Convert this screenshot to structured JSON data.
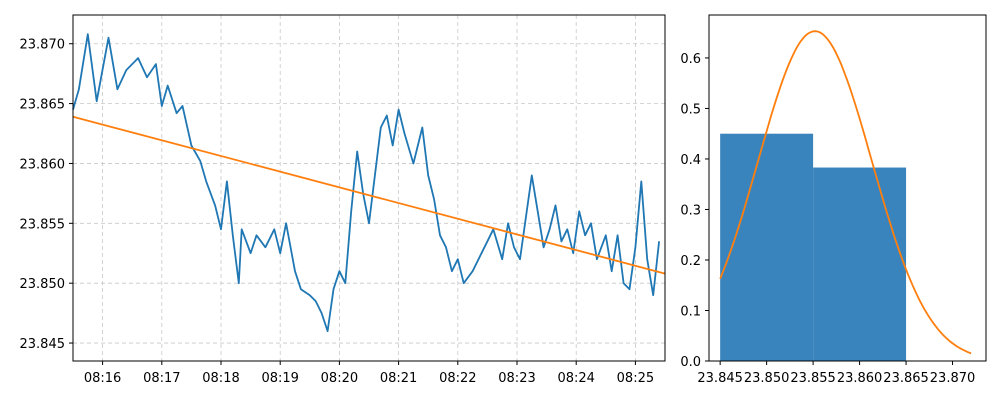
{
  "chart_data": [
    {
      "type": "line",
      "title": "",
      "xlabel": "",
      "ylabel": "",
      "grid": true,
      "x_tick_labels": [
        "08:16",
        "08:17",
        "08:18",
        "08:19",
        "08:20",
        "08:21",
        "08:22",
        "08:23",
        "08:24",
        "08:25"
      ],
      "y_tick_labels": [
        "23.845",
        "23.850",
        "23.855",
        "23.860",
        "23.865",
        "23.870"
      ],
      "y_ticks": [
        23.845,
        23.85,
        23.855,
        23.86,
        23.865,
        23.87
      ],
      "x_range_minutes": [
        15.5,
        25.5
      ],
      "ylim": [
        23.8435,
        23.8724
      ],
      "series": [
        {
          "color": "#1f77b4",
          "x_minutes": [
            15.5,
            15.6,
            15.75,
            15.9,
            16.1,
            16.25,
            16.4,
            16.6,
            16.75,
            16.9,
            17.0,
            17.1,
            17.25,
            17.35,
            17.5,
            17.65,
            17.75,
            17.9,
            18.0,
            18.1,
            18.2,
            18.3,
            18.35,
            18.5,
            18.6,
            18.75,
            18.9,
            19.0,
            19.1,
            19.25,
            19.35,
            19.5,
            19.6,
            19.7,
            19.8,
            19.9,
            20.0,
            20.1,
            20.2,
            20.3,
            20.4,
            20.5,
            20.6,
            20.7,
            20.8,
            20.9,
            21.0,
            21.1,
            21.25,
            21.4,
            21.5,
            21.6,
            21.7,
            21.8,
            21.9,
            22.0,
            22.1,
            22.25,
            22.4,
            22.5,
            22.6,
            22.75,
            22.85,
            22.95,
            23.05,
            23.15,
            23.25,
            23.35,
            23.45,
            23.55,
            23.65,
            23.75,
            23.85,
            23.95,
            24.05,
            24.15,
            24.25,
            24.35,
            24.5,
            24.6,
            24.7,
            24.8,
            24.9,
            25.0,
            25.1,
            25.2,
            25.3,
            25.4
          ],
          "y": [
            23.8645,
            23.8662,
            23.8708,
            23.8652,
            23.8705,
            23.8662,
            23.8678,
            23.8688,
            23.8672,
            23.8683,
            23.8648,
            23.8665,
            23.8642,
            23.8648,
            23.8615,
            23.8602,
            23.8585,
            23.8565,
            23.8545,
            23.8585,
            23.854,
            23.85,
            23.8545,
            23.8525,
            23.854,
            23.853,
            23.8545,
            23.8525,
            23.855,
            23.851,
            23.8495,
            23.849,
            23.8485,
            23.8475,
            23.846,
            23.8495,
            23.851,
            23.85,
            23.856,
            23.861,
            23.8575,
            23.855,
            23.859,
            23.863,
            23.864,
            23.8615,
            23.8645,
            23.8625,
            23.86,
            23.863,
            23.859,
            23.857,
            23.854,
            23.853,
            23.851,
            23.852,
            23.85,
            23.851,
            23.8525,
            23.8535,
            23.8545,
            23.852,
            23.855,
            23.853,
            23.852,
            23.8555,
            23.859,
            23.856,
            23.853,
            23.8545,
            23.8565,
            23.8535,
            23.8545,
            23.8525,
            23.856,
            23.854,
            23.855,
            23.852,
            23.854,
            23.851,
            23.854,
            23.85,
            23.8495,
            23.853,
            23.8585,
            23.852,
            23.849,
            23.8535
          ]
        },
        {
          "color": "#ff7f0e",
          "x_minutes": [
            15.5,
            25.5
          ],
          "y": [
            23.8639,
            23.8508
          ]
        }
      ]
    },
    {
      "type": "bar",
      "title": "",
      "xlabel": "",
      "ylabel": "",
      "grid": false,
      "x_tick_labels": [
        "23.845",
        "23.850",
        "23.855",
        "23.860",
        "23.865",
        "23.870"
      ],
      "x_ticks": [
        23.845,
        23.85,
        23.855,
        23.86,
        23.865,
        23.87
      ],
      "y_tick_labels": [
        "0.0",
        "0.1",
        "0.2",
        "0.3",
        "0.4",
        "0.5",
        "0.6"
      ],
      "y_ticks": [
        0.0,
        0.1,
        0.2,
        0.3,
        0.4,
        0.5,
        0.6
      ],
      "xlim": [
        23.8438,
        23.8736
      ],
      "ylim": [
        0,
        0.685
      ],
      "bars": [
        {
          "x_start": 23.845,
          "x_end": 23.855,
          "value": 0.45
        },
        {
          "x_start": 23.855,
          "x_end": 23.865,
          "value": 0.383
        }
      ],
      "bar_color": "#3a84bd",
      "curve": {
        "type": "normal",
        "color": "#ff7f0e",
        "mean": 23.8552,
        "sd": 0.00612,
        "x_range": [
          23.845,
          23.872
        ]
      }
    }
  ]
}
